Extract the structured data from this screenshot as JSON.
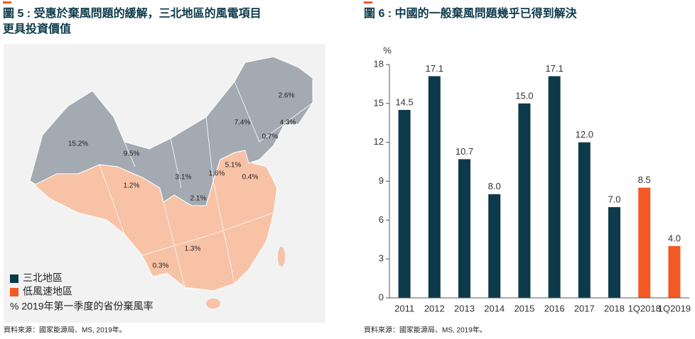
{
  "chart_data": [
    {
      "type": "map",
      "title": [
        "圖 5 : 受惠於棄風問題的緩解，三北地區的風電項目",
        "更具投資價值"
      ],
      "region_colors": [
        "#a3aab2",
        "#f8c2a6"
      ],
      "values": [
        15.2,
        9.5,
        1.2,
        3.1,
        2.1,
        1.6,
        5.1,
        0.4,
        7.4,
        2.6,
        4.3,
        0.7,
        1.3,
        0.3
      ],
      "value_labels": [
        "15.2%",
        "9.5%",
        "1.2%",
        "3.1%",
        "2.1%",
        "1.6%",
        "5.1%",
        "0.4%",
        "7.4%",
        "2.6%",
        "4.3%",
        "0.7%",
        "1.3%",
        "0.3%"
      ],
      "legend": [
        {
          "name": "三北地區",
          "color": "#0c3a4a"
        },
        {
          "name": "低風速地區",
          "color": "#f15a24"
        }
      ],
      "note": "% 2019年第一季度的省份棄風率",
      "source": "資料來源：國家能源局、MS, 2019年。"
    },
    {
      "type": "bar",
      "title": "圖 6 : 中國的一般棄風問題幾乎已得到解決",
      "y_label": "%",
      "categories": [
        "2011",
        "2012",
        "2013",
        "2014",
        "2015",
        "2016",
        "2017",
        "2018",
        "1Q2018",
        "1Q2019"
      ],
      "values": [
        14.5,
        17.1,
        10.7,
        8.0,
        15.0,
        17.1,
        12.0,
        7.0,
        8.5,
        4.0
      ],
      "value_labels": [
        "14.5",
        "17.1",
        "10.7",
        "8.0",
        "15.0",
        "17.1",
        "12.0",
        "7.0",
        "8.5",
        "4.0"
      ],
      "colors": [
        "#0c3a4a",
        "#0c3a4a",
        "#0c3a4a",
        "#0c3a4a",
        "#0c3a4a",
        "#0c3a4a",
        "#0c3a4a",
        "#0c3a4a",
        "#f15a24",
        "#f15a24"
      ],
      "ylim": [
        0,
        18
      ],
      "yticks": [
        0,
        3,
        6,
        9,
        12,
        15,
        18
      ],
      "grid": false,
      "source": "資料來源：國家能源局、MS, 2019年。"
    }
  ]
}
